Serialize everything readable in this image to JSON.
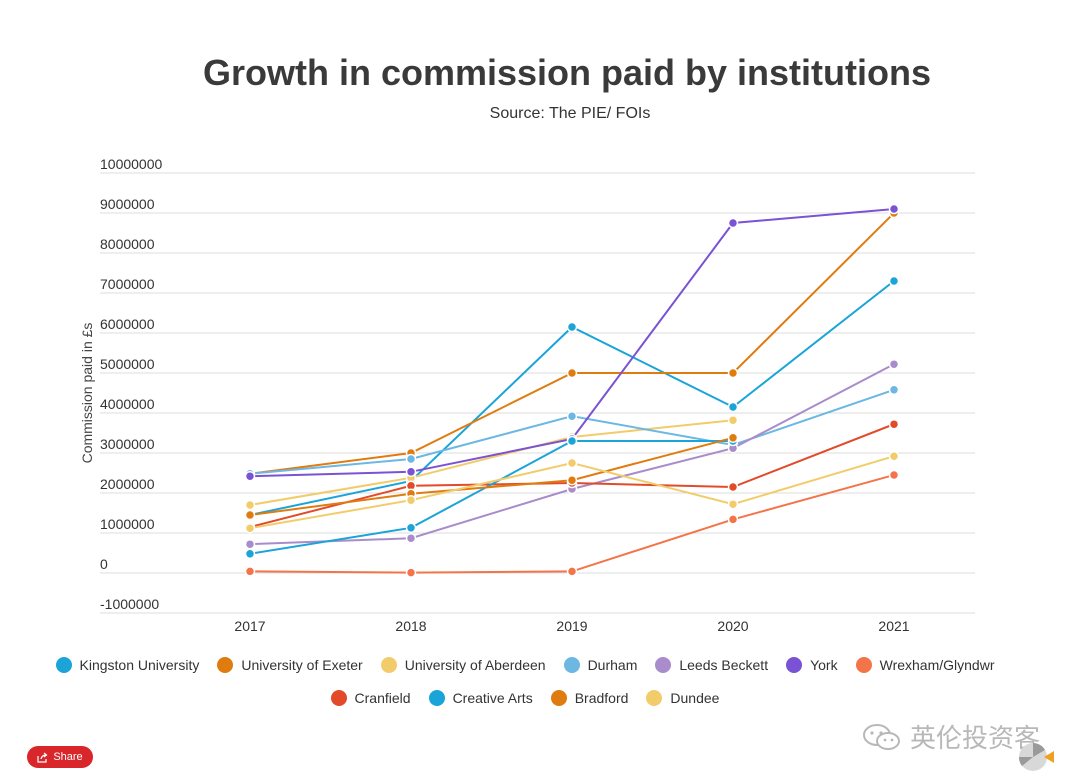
{
  "chart_data": {
    "type": "line",
    "title": "Growth in commission paid by institutions",
    "subtitle": "Source: The PIE/ FOIs",
    "ylabel": "Commission paid in £s",
    "xlabel": "",
    "x": [
      "2017",
      "2018",
      "2019",
      "2020",
      "2021"
    ],
    "ylim": [
      -1000000,
      10000000
    ],
    "yticks": [
      10000000,
      9000000,
      8000000,
      7000000,
      6000000,
      5000000,
      4000000,
      3000000,
      2000000,
      1000000,
      0,
      -1000000
    ],
    "grid": true,
    "legend_position": "bottom",
    "series": [
      {
        "name": "Kingston University",
        "color": "#1aa4d8",
        "values": [
          1450000,
          2300000,
          6150000,
          4150000,
          7300000
        ]
      },
      {
        "name": "University of Exeter",
        "color": "#e07b10",
        "values": [
          2480000,
          3000000,
          5000000,
          5000000,
          9000000
        ]
      },
      {
        "name": "University of Aberdeen",
        "color": "#f2cc6a",
        "values": [
          1700000,
          2380000,
          3400000,
          3820000,
          null
        ]
      },
      {
        "name": "Durham",
        "color": "#6cb8e3",
        "values": [
          2480000,
          2850000,
          3920000,
          3200000,
          4580000
        ]
      },
      {
        "name": "Leeds Beckett",
        "color": "#a98ccb",
        "values": [
          720000,
          870000,
          2100000,
          3120000,
          5220000
        ]
      },
      {
        "name": "York",
        "color": "#7a52d4",
        "values": [
          2420000,
          2530000,
          3350000,
          8750000,
          9100000
        ]
      },
      {
        "name": "Wrexham/Glyndwr",
        "color": "#f4744a",
        "values": [
          40000,
          10000,
          40000,
          1340000,
          2450000
        ]
      },
      {
        "name": "Cranfield",
        "color": "#e24a2a",
        "values": [
          1150000,
          2180000,
          2250000,
          2150000,
          3720000
        ]
      },
      {
        "name": "Creative Arts",
        "color": "#1aa4d8",
        "values": [
          480000,
          1130000,
          3300000,
          3300000,
          null
        ]
      },
      {
        "name": "Bradford",
        "color": "#e07b10",
        "values": [
          1450000,
          1980000,
          2320000,
          3380000,
          null
        ]
      },
      {
        "name": "Dundee",
        "color": "#f2cc6a",
        "values": [
          1120000,
          1820000,
          2750000,
          1720000,
          2920000
        ]
      }
    ]
  },
  "share": {
    "label": "Share"
  },
  "watermark": {
    "text": "英伦投资客"
  }
}
